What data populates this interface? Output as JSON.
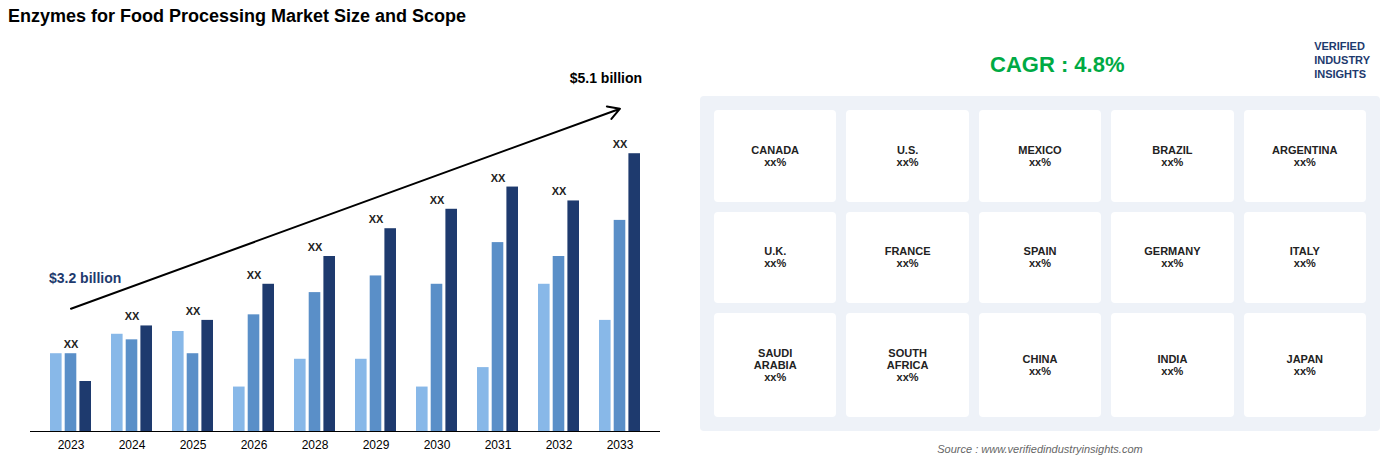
{
  "chart_data": {
    "type": "bar",
    "title": "Enzymes for Food Processing Market Size and Scope",
    "categories": [
      "2023",
      "2024",
      "2025",
      "2026",
      "2028",
      "2029",
      "2030",
      "2031",
      "2032",
      "2033"
    ],
    "series": [
      {
        "color": "#88b8e8",
        "values": [
          0.28,
          0.35,
          0.36,
          0.16,
          0.26,
          0.26,
          0.16,
          0.23,
          0.53,
          0.4
        ]
      },
      {
        "color": "#5a8fc8",
        "values": [
          0.28,
          0.33,
          0.28,
          0.42,
          0.5,
          0.56,
          0.53,
          0.68,
          0.63,
          0.76
        ]
      },
      {
        "color": "#1e3a6e",
        "values": [
          0.18,
          0.38,
          0.4,
          0.53,
          0.63,
          0.73,
          0.8,
          0.88,
          0.83,
          1.0
        ]
      }
    ],
    "ylim": [
      0,
      1.35
    ],
    "tick_labels": "x",
    "grid": false,
    "annotations": [
      {
        "text": "XX",
        "x": "2023"
      },
      {
        "text": "XX",
        "x": "2024"
      },
      {
        "text": "XX",
        "x": "2025"
      },
      {
        "text": "XX",
        "x": "2026"
      },
      {
        "text": "XX",
        "x": "2028"
      },
      {
        "text": "XX",
        "x": "2029"
      },
      {
        "text": "XX",
        "x": "2030"
      },
      {
        "text": "XX",
        "x": "2031"
      },
      {
        "text": "XX",
        "x": "2032"
      },
      {
        "text": "XX",
        "x": "2033"
      },
      {
        "text": "$3.2 billion",
        "color": "#1e3a6e"
      },
      {
        "text": "$5.1 billion",
        "color": "#000000"
      },
      {
        "text": "CAGR : 4.8%",
        "color": "#00aa44"
      },
      {
        "text": "Source : www.verifiedindustryinsights.com"
      },
      {
        "text": "VERIFIED\nINDUSTRY\nINSIGHTS",
        "color": "#1e3a6e"
      },
      {
        "text": "CANADA\nxx%"
      },
      {
        "text": "U.S.\nxx%"
      },
      {
        "text": "MEXICO\nxx%"
      },
      {
        "text": "BRAZIL\nxx%"
      },
      {
        "text": "ARGENTINA\nxx%"
      },
      {
        "text": "U.K.\nxx%"
      },
      {
        "text": "FRANCE\nxx%"
      },
      {
        "text": "SPAIN\nxx%"
      },
      {
        "text": "GERMANY\nxx%"
      },
      {
        "text": "ITALY\nxx%"
      },
      {
        "text": "SAUDI\nARABIA\nxx%"
      },
      {
        "text": "SOUTH\nAFRICA\nxx%"
      },
      {
        "text": "CHINA\nxx%"
      },
      {
        "text": "INDIA\nxx%"
      },
      {
        "text": "JAPAN\nxx%"
      }
    ]
  }
}
